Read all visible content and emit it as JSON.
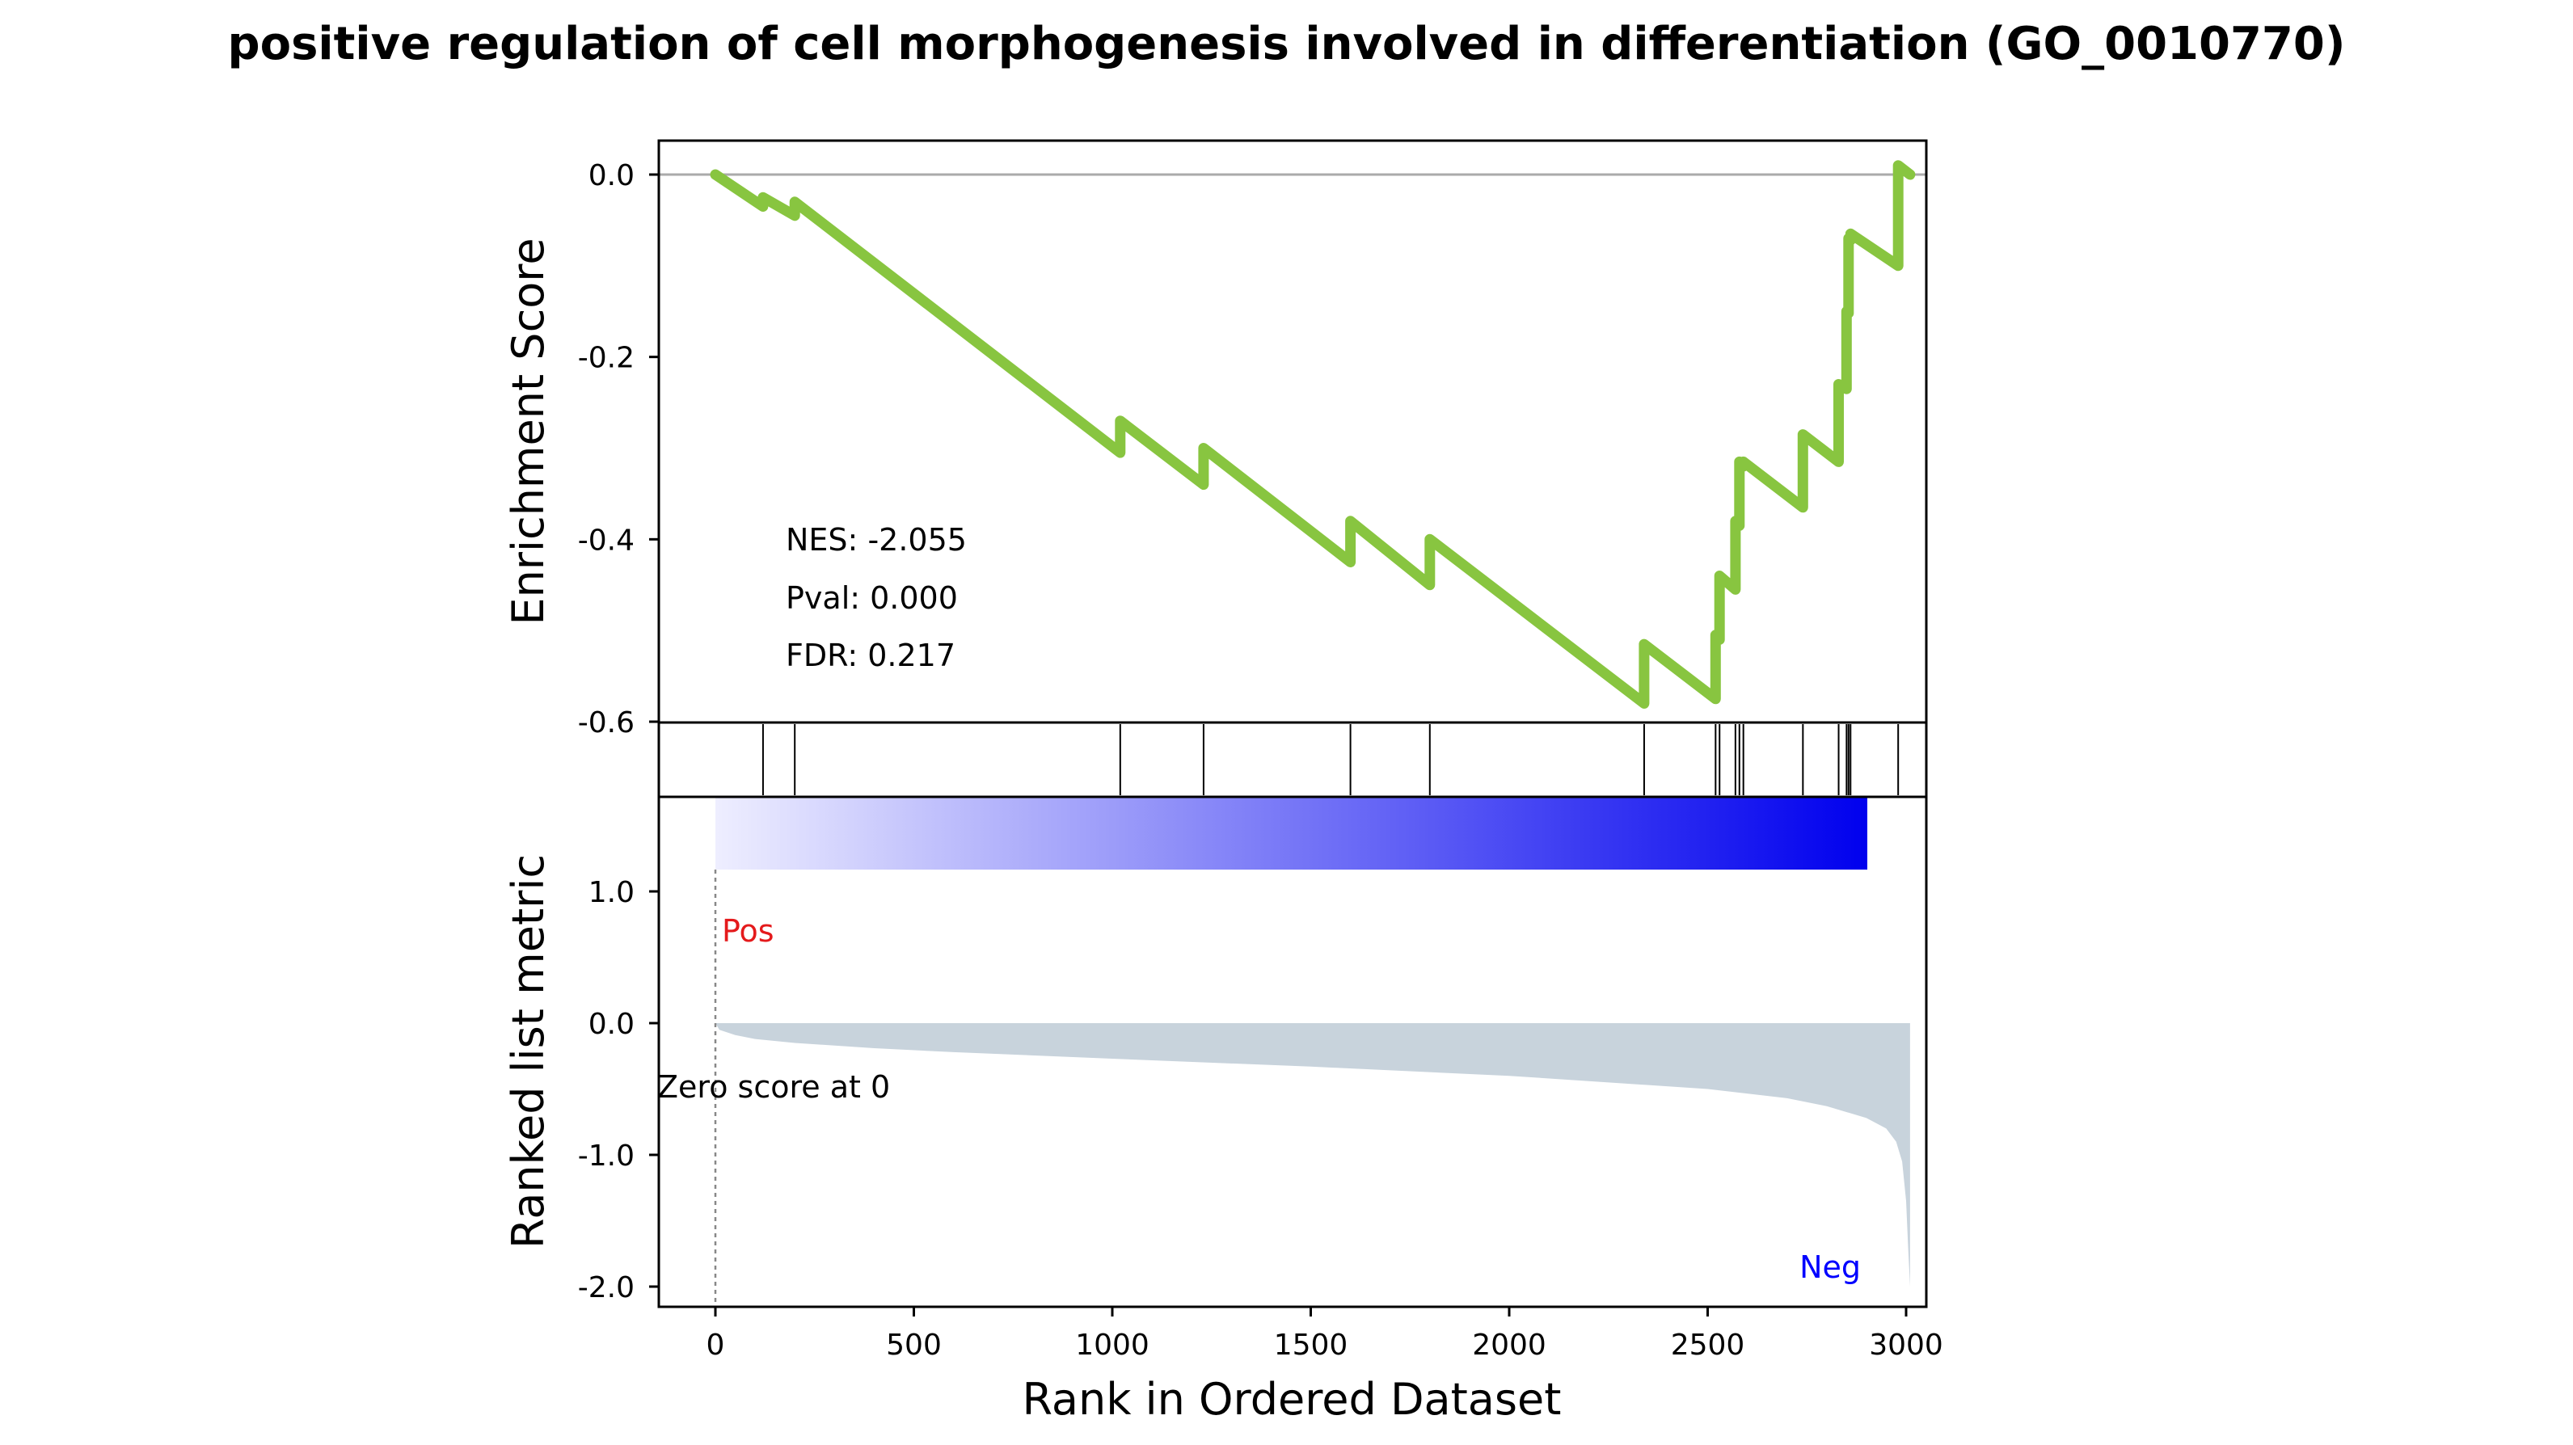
{
  "title": "positive regulation of cell morphogenesis involved in differentiation (GO_0010770)",
  "stats": {
    "nes": "NES: -2.055",
    "pval": "Pval: 0.000",
    "fdr": "FDR: 0.217"
  },
  "annotations": {
    "pos": "Pos",
    "neg": "Neg",
    "zero_score": "Zero score at 0"
  },
  "colors": {
    "es_line": "#88c540",
    "metric_fill": "#c8d3dc",
    "pos_text": "#e41a1c",
    "neg_text": "#0000ff",
    "gradient_start": "#eeeeff",
    "gradient_end": "#0000ee"
  },
  "chart_data": [
    {
      "type": "line",
      "panel": "enrichment-score",
      "ylabel": "Enrichment Score",
      "ylim": [
        -0.6,
        0.0
      ],
      "yticks": [
        "0.0",
        "-0.2",
        "-0.4",
        "-0.6"
      ],
      "xlim": [
        0,
        3000
      ],
      "series": [
        {
          "x": [
            0,
            120,
            120,
            200,
            200,
            1020,
            1020,
            1230,
            1230,
            1600,
            1600,
            1800,
            1800,
            2340,
            2340,
            2520,
            2520,
            2530,
            2530,
            2570,
            2570,
            2580,
            2580,
            2590,
            2590,
            2740,
            2740,
            2830,
            2830,
            2850,
            2850,
            2855,
            2855,
            2860,
            2860,
            2980,
            2980,
            3010
          ],
          "y": [
            0.0,
            -0.035,
            -0.025,
            -0.045,
            -0.03,
            -0.305,
            -0.27,
            -0.34,
            -0.3,
            -0.425,
            -0.38,
            -0.45,
            -0.4,
            -0.58,
            -0.515,
            -0.575,
            -0.505,
            -0.51,
            -0.44,
            -0.455,
            -0.38,
            -0.385,
            -0.315,
            -0.32,
            -0.315,
            -0.365,
            -0.285,
            -0.315,
            -0.23,
            -0.235,
            -0.15,
            -0.152,
            -0.07,
            -0.072,
            -0.065,
            -0.1,
            0.01,
            0.0
          ]
        }
      ]
    },
    {
      "type": "hits",
      "panel": "gene-hits",
      "x": [
        120,
        200,
        1020,
        1230,
        1600,
        1800,
        2340,
        2520,
        2530,
        2570,
        2580,
        2590,
        2740,
        2830,
        2850,
        2855,
        2860,
        2980
      ]
    },
    {
      "type": "area",
      "panel": "ranked-list-metric",
      "ylabel": "Ranked list metric",
      "xlabel": "Rank in Ordered Dataset",
      "ylim": [
        -2.0,
        1.0
      ],
      "yticks": [
        "1.0",
        "0.0",
        "-1.0",
        "-2.0"
      ],
      "xticks": [
        "0",
        "500",
        "1000",
        "1500",
        "2000",
        "2500",
        "3000"
      ],
      "x": [
        0,
        10,
        50,
        100,
        200,
        400,
        600,
        1000,
        1500,
        2000,
        2500,
        2700,
        2800,
        2900,
        2950,
        2975,
        2990,
        3000,
        3005,
        3010
      ],
      "y": [
        0.0,
        -0.05,
        -0.09,
        -0.12,
        -0.15,
        -0.19,
        -0.22,
        -0.27,
        -0.33,
        -0.4,
        -0.5,
        -0.57,
        -0.63,
        -0.72,
        -0.8,
        -0.9,
        -1.05,
        -1.35,
        -1.7,
        -2.0
      ]
    }
  ]
}
